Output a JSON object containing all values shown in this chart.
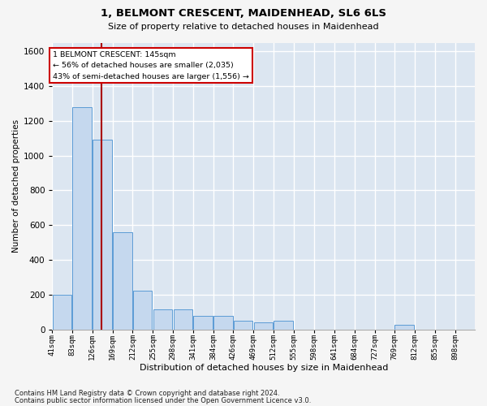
{
  "title1": "1, BELMONT CRESCENT, MAIDENHEAD, SL6 6LS",
  "title2": "Size of property relative to detached houses in Maidenhead",
  "xlabel": "Distribution of detached houses by size in Maidenhead",
  "ylabel": "Number of detached properties",
  "footnote1": "Contains HM Land Registry data © Crown copyright and database right 2024.",
  "footnote2": "Contains public sector information licensed under the Open Government Licence v3.0.",
  "annotation_title": "1 BELMONT CRESCENT: 145sqm",
  "annotation_line1": "← 56% of detached houses are smaller (2,035)",
  "annotation_line2": "43% of semi-detached houses are larger (1,556) →",
  "property_size": 145,
  "bins": [
    41,
    83,
    126,
    169,
    212,
    255,
    298,
    341,
    384,
    426,
    469,
    512,
    555,
    598,
    641,
    684,
    727,
    769,
    812,
    855,
    898
  ],
  "bar_values": [
    200,
    1280,
    1090,
    560,
    220,
    115,
    115,
    75,
    75,
    50,
    38,
    50,
    0,
    0,
    0,
    0,
    0,
    28,
    0,
    0,
    0
  ],
  "bar_color": "#c5d8ee",
  "bar_edge_color": "#5b9bd5",
  "vline_color": "#aa0000",
  "annotation_box_bg": "#ffffff",
  "annotation_box_edge": "#cc0000",
  "plot_bg_color": "#dce6f1",
  "fig_bg_color": "#f5f5f5",
  "grid_color": "#ffffff",
  "ylim": [
    0,
    1650
  ],
  "yticks": [
    0,
    200,
    400,
    600,
    800,
    1000,
    1200,
    1400,
    1600
  ]
}
